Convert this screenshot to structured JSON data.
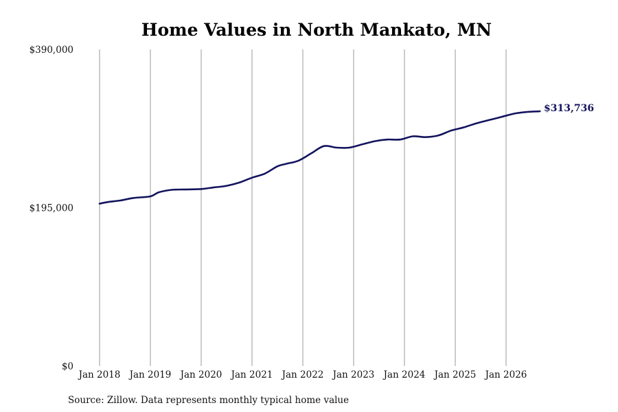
{
  "chart_data": {
    "type": "line",
    "title": "Home Values in North Mankato, MN",
    "xlabel": "",
    "ylabel": "",
    "ylim": [
      0,
      390000
    ],
    "y_ticks": [
      {
        "value": 0,
        "label": "$0"
      },
      {
        "value": 195000,
        "label": "$195,000"
      },
      {
        "value": 390000,
        "label": "$390,000"
      }
    ],
    "x_ticks": [
      "Jan 2018",
      "Jan 2019",
      "Jan 2020",
      "Jan 2021",
      "Jan 2022",
      "Jan 2023",
      "Jan 2024",
      "Jan 2025",
      "Jan 2026"
    ],
    "grid": "vertical",
    "line_color": "#13135e",
    "series": [
      {
        "points": [
          [
            "2018-01",
            200000
          ],
          [
            "2018-03",
            202000
          ],
          [
            "2018-06",
            204000
          ],
          [
            "2018-09",
            207000
          ],
          [
            "2019-01",
            209000
          ],
          [
            "2019-03",
            214000
          ],
          [
            "2019-06",
            217000
          ],
          [
            "2019-09",
            217500
          ],
          [
            "2020-01",
            218000
          ],
          [
            "2020-04",
            220000
          ],
          [
            "2020-07",
            222000
          ],
          [
            "2020-10",
            226000
          ],
          [
            "2021-01",
            232000
          ],
          [
            "2021-04",
            237000
          ],
          [
            "2021-07",
            246000
          ],
          [
            "2021-09",
            249000
          ],
          [
            "2021-12",
            253000
          ],
          [
            "2022-03",
            262000
          ],
          [
            "2022-06",
            271000
          ],
          [
            "2022-09",
            269000
          ],
          [
            "2022-12",
            269000
          ],
          [
            "2023-03",
            273000
          ],
          [
            "2023-06",
            277000
          ],
          [
            "2023-09",
            279000
          ],
          [
            "2023-12",
            279000
          ],
          [
            "2024-03",
            283000
          ],
          [
            "2024-06",
            282000
          ],
          [
            "2024-09",
            284000
          ],
          [
            "2024-12",
            290000
          ],
          [
            "2025-03",
            294000
          ],
          [
            "2025-06",
            299000
          ],
          [
            "2025-09",
            303000
          ],
          [
            "2025-12",
            307000
          ],
          [
            "2026-03",
            311000
          ],
          [
            "2026-06",
            313000
          ],
          [
            "2026-09",
            313736
          ]
        ]
      }
    ],
    "end_label": "$313,736",
    "source": "Source: Zillow. Data represents monthly typical home value"
  }
}
